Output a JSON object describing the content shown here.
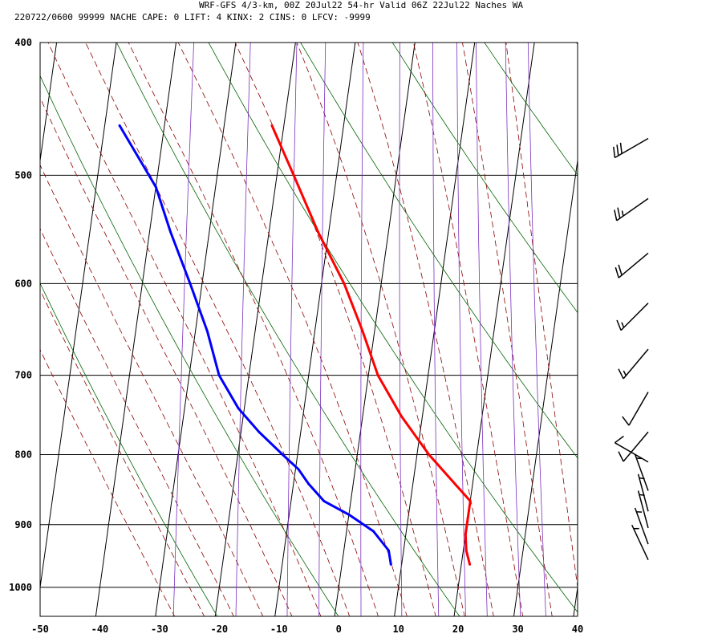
{
  "header": {
    "line1": "WRF-GFS 4/3-km, 00Z 20Jul22 54-hr Valid 06Z 22Jul22 Naches WA",
    "line2": "220722/0600 99999  NACHE   CAPE:     0 LIFT:     4 KINX:     2 CINS:     0 LFCV: -9999"
  },
  "chart_data": {
    "type": "line",
    "subtype": "skew-t log-p sounding",
    "title": "WRF-GFS 4/3-km, 00Z 20Jul22 54-hr Valid 06Z 22Jul22 Naches WA",
    "station": "NACHE",
    "indices": {
      "CAPE": 0,
      "LIFT": 4,
      "KINX": 2,
      "CINS": 0,
      "LFCV": -9999
    },
    "xlabel": "",
    "ylabel": "",
    "x_ticks": [
      -50,
      -40,
      -30,
      -20,
      -10,
      0,
      10,
      20,
      30,
      40
    ],
    "y_ticks": [
      400,
      500,
      600,
      700,
      800,
      900,
      1000
    ],
    "y_scale": "log, inverted",
    "pressure_range_hpa": [
      400,
      1050
    ],
    "colors": {
      "temperature": "#ff0000",
      "dewpoint": "#0000ff",
      "isotherm": "#000000",
      "dry_adiabat": "#006400",
      "moist_adiabat": "#8b0000",
      "mixing_ratio": "#7b2fbe"
    },
    "series": [
      {
        "name": "Temperature",
        "color": "#ff0000",
        "points": [
          {
            "p": 962,
            "t": 21.4
          },
          {
            "p": 940,
            "t": 20.5
          },
          {
            "p": 915,
            "t": 20.0
          },
          {
            "p": 890,
            "t": 20.0
          },
          {
            "p": 865,
            "t": 20.0
          },
          {
            "p": 840,
            "t": 17.0
          },
          {
            "p": 800,
            "t": 12.0
          },
          {
            "p": 750,
            "t": 6.5
          },
          {
            "p": 700,
            "t": 1.6
          },
          {
            "p": 650,
            "t": -2.0
          },
          {
            "p": 600,
            "t": -6.2
          },
          {
            "p": 550,
            "t": -11.8
          },
          {
            "p": 500,
            "t": -17.2
          },
          {
            "p": 460,
            "t": -22.0
          }
        ]
      },
      {
        "name": "Dewpoint",
        "color": "#0000ff",
        "points": [
          {
            "p": 962,
            "t": 8.2
          },
          {
            "p": 940,
            "t": 7.5
          },
          {
            "p": 910,
            "t": 4.5
          },
          {
            "p": 885,
            "t": 0.0
          },
          {
            "p": 865,
            "t": -4.5
          },
          {
            "p": 840,
            "t": -7.5
          },
          {
            "p": 820,
            "t": -9.5
          },
          {
            "p": 800,
            "t": -12.5
          },
          {
            "p": 770,
            "t": -17.0
          },
          {
            "p": 740,
            "t": -21.0
          },
          {
            "p": 700,
            "t": -25.0
          },
          {
            "p": 650,
            "t": -28.0
          },
          {
            "p": 600,
            "t": -32.0
          },
          {
            "p": 550,
            "t": -36.5
          },
          {
            "p": 510,
            "t": -40.0
          },
          {
            "p": 460,
            "t": -47.5
          }
        ]
      }
    ],
    "wind_barbs": [
      {
        "p": 470,
        "dir": 240,
        "speed_kt": 30
      },
      {
        "p": 520,
        "dir": 235,
        "speed_kt": 25
      },
      {
        "p": 570,
        "dir": 230,
        "speed_kt": 20
      },
      {
        "p": 620,
        "dir": 225,
        "speed_kt": 15
      },
      {
        "p": 670,
        "dir": 220,
        "speed_kt": 15
      },
      {
        "p": 720,
        "dir": 210,
        "speed_kt": 10
      },
      {
        "p": 770,
        "dir": 220,
        "speed_kt": 10
      },
      {
        "p": 810,
        "dir": 300,
        "speed_kt": 10
      },
      {
        "p": 850,
        "dir": 340,
        "speed_kt": 5
      },
      {
        "p": 880,
        "dir": 345,
        "speed_kt": 5
      },
      {
        "p": 905,
        "dir": 345,
        "speed_kt": 5
      },
      {
        "p": 930,
        "dir": 340,
        "speed_kt": 5
      },
      {
        "p": 955,
        "dir": 335,
        "speed_kt": 5
      }
    ]
  }
}
